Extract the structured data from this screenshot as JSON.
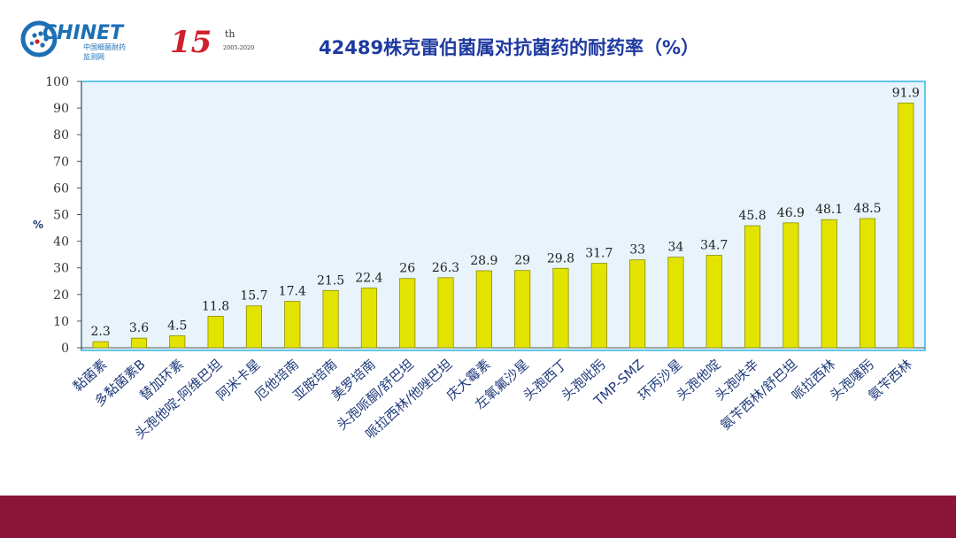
{
  "header": {
    "logo_text": "CHINET",
    "logo_subtitle_cn": "中国细菌耐药",
    "logo_subtitle_cn2": "监测网",
    "anniversary_number": "15",
    "anniversary_suffix": "th",
    "anniversary_years": "2005-2020"
  },
  "colors": {
    "bar_fill": "#e3e300",
    "bar_stroke": "#8c8c00",
    "plot_background": "#e8f3fb",
    "plot_border": "#33b5e5",
    "title_color": "#1f3aa0",
    "label_color": "#1f3a7a",
    "footer_band": "#8a1538",
    "logo_blue": "#1c6fb5",
    "logo_red": "#d0202b"
  },
  "chart_data": {
    "type": "bar",
    "title": "42489株克雷伯菌属对抗菌药的耐药率（%）",
    "ylabel": "%",
    "xlabel": "",
    "ylim": [
      0,
      100
    ],
    "yticks": [
      0,
      10,
      20,
      30,
      40,
      50,
      60,
      70,
      80,
      90,
      100
    ],
    "grid": false,
    "categories": [
      "黏菌素",
      "多黏菌素B",
      "替加环素",
      "头孢他啶-阿维巴坦",
      "阿米卡星",
      "厄他培南",
      "亚胺培南",
      "美罗培南",
      "头孢哌酮/舒巴坦",
      "哌拉西林/他唑巴坦",
      "庆大霉素",
      "左氧氟沙星",
      "头孢西丁",
      "头孢吡肟",
      "TMP-SMZ",
      "环丙沙星",
      "头孢他啶",
      "头孢呋辛",
      "氨苄西林/舒巴坦",
      "哌拉西林",
      "头孢噻肟",
      "氨苄西林"
    ],
    "values": [
      2.3,
      3.6,
      4.5,
      11.8,
      15.7,
      17.4,
      21.5,
      22.4,
      26,
      26.3,
      28.9,
      29,
      29.8,
      31.7,
      33,
      34,
      34.7,
      45.8,
      46.9,
      48.1,
      48.5,
      91.9
    ]
  }
}
